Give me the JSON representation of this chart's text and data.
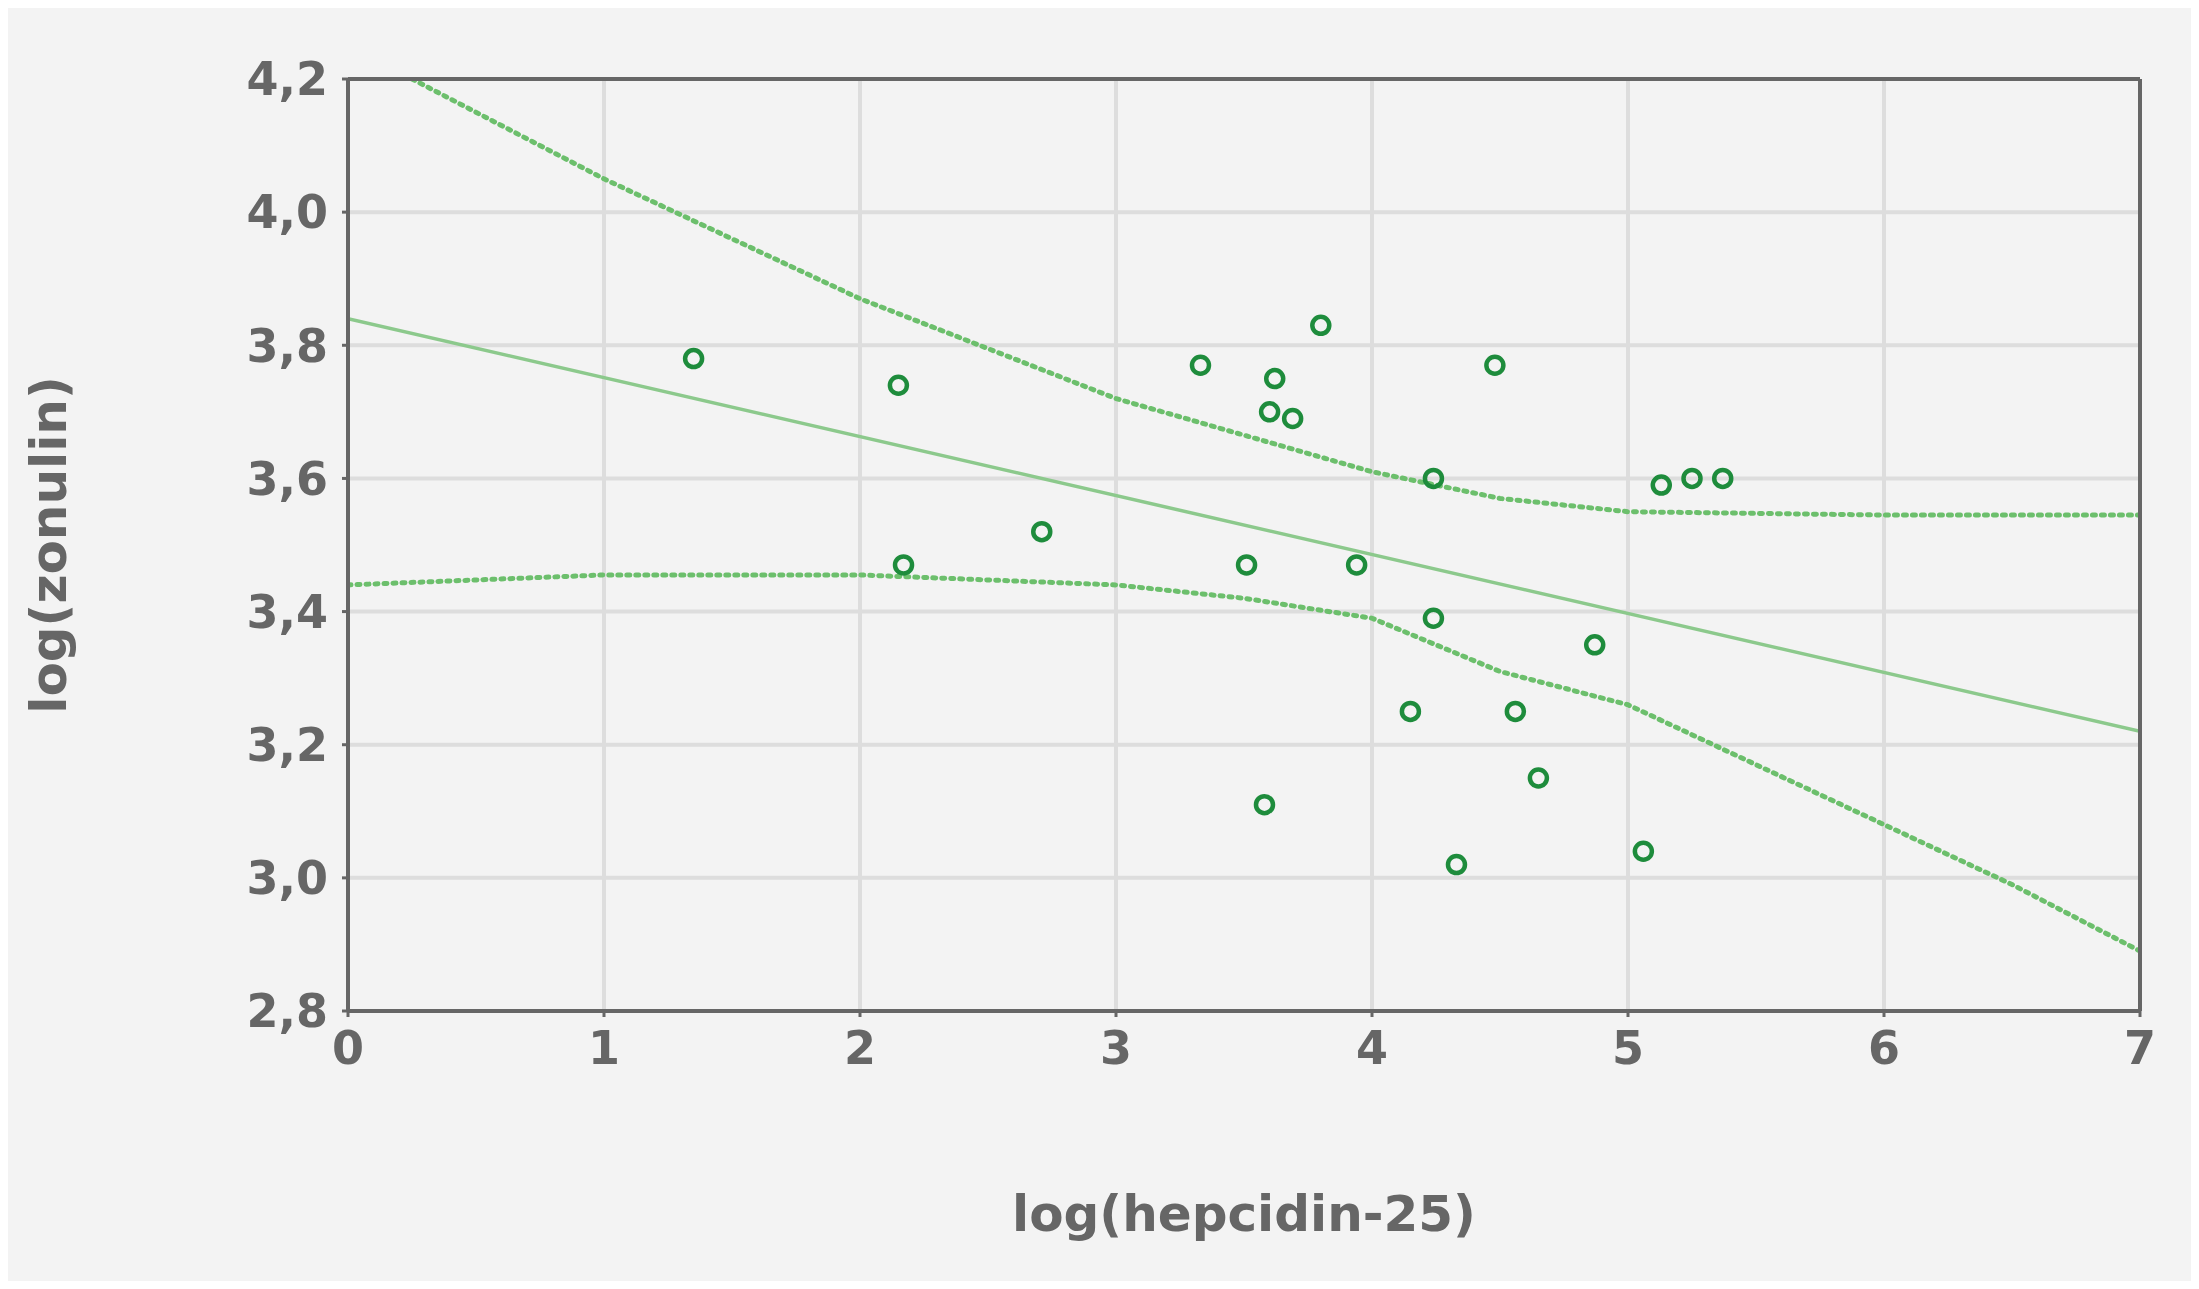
{
  "chart_data": {
    "type": "scatter",
    "xlabel": "log(hepcidin-25)",
    "ylabel": "log(zonulin)",
    "xlim": [
      0,
      7
    ],
    "xticks": [
      0,
      1,
      2,
      3,
      4,
      5,
      6,
      7
    ],
    "ylim": [
      2.8,
      4.2
    ],
    "yticks": [
      {
        "value": 2.8,
        "label": "2,8"
      },
      {
        "value": 3.0,
        "label": "3,0"
      },
      {
        "value": 3.2,
        "label": "3,2"
      },
      {
        "value": 3.4,
        "label": "3,4"
      },
      {
        "value": 3.6,
        "label": "3,6"
      },
      {
        "value": 3.8,
        "label": "3,8"
      },
      {
        "value": 4.0,
        "label": "4,0"
      },
      {
        "value": 4.2,
        "label": "4,2"
      }
    ],
    "grid": true,
    "legend": false,
    "series": [
      {
        "color": "#1e8c3c",
        "marker": "circle",
        "x": [
          1.35,
          2.15,
          2.17,
          2.71,
          3.33,
          3.51,
          3.58,
          3.62,
          3.6,
          3.69,
          3.8,
          3.94,
          4.15,
          4.24,
          4.24,
          4.33,
          4.48,
          4.56,
          4.65,
          4.87,
          5.06,
          5.13,
          5.25,
          5.37
        ],
        "values": [
          3.78,
          3.74,
          3.47,
          3.52,
          3.77,
          3.47,
          3.11,
          3.75,
          3.7,
          3.69,
          3.83,
          3.47,
          3.25,
          3.6,
          3.39,
          3.02,
          3.77,
          3.25,
          3.15,
          3.35,
          3.04,
          3.59,
          3.6,
          3.6
        ]
      },
      {
        "type": "line",
        "color": "#8cc98c",
        "line_style": "solid",
        "x": [
          0,
          7
        ],
        "values": [
          3.84,
          3.22
        ]
      },
      {
        "type": "line",
        "color": "#6cbf6c",
        "line_style": "dotted",
        "x": [
          0.25,
          1,
          2,
          3,
          4,
          4.5,
          5,
          6,
          7
        ],
        "values": [
          4.2,
          4.05,
          3.87,
          3.72,
          3.61,
          3.57,
          3.55,
          3.545,
          3.545
        ]
      },
      {
        "type": "line",
        "color": "#6cbf6c",
        "line_style": "dotted",
        "x": [
          0,
          1,
          2,
          3,
          3.5,
          4,
          4.5,
          5,
          5.5,
          6,
          6.5,
          7
        ],
        "values": [
          3.44,
          3.455,
          3.455,
          3.44,
          3.42,
          3.39,
          3.31,
          3.26,
          3.17,
          3.08,
          2.99,
          2.89
        ]
      }
    ]
  }
}
